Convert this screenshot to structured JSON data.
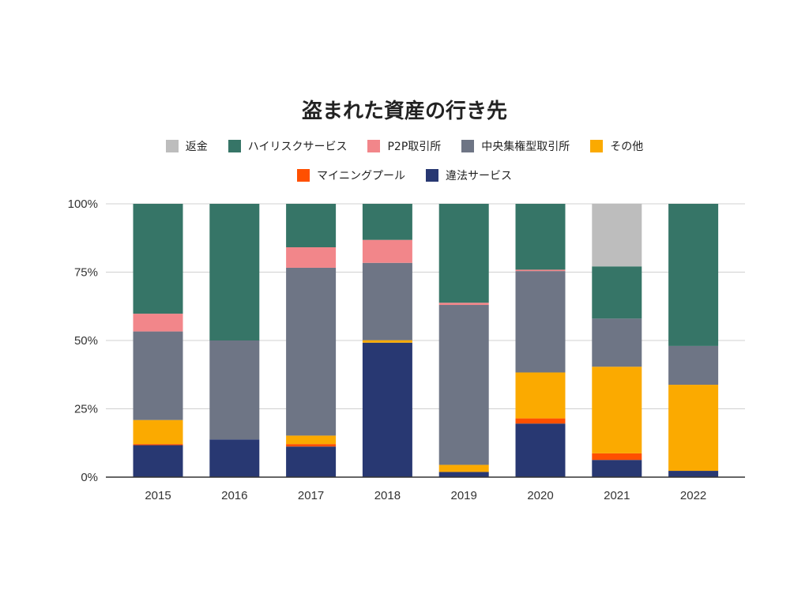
{
  "chart_data": {
    "type": "bar",
    "stacked": "percent",
    "title": "盗まれた資産の行き先",
    "xlabel": "",
    "ylabel": "",
    "ylim": [
      0,
      100
    ],
    "yticks": [
      "0%",
      "25%",
      "50%",
      "75%",
      "100%"
    ],
    "grid": true,
    "legend_position": "top",
    "categories": [
      "2015",
      "2016",
      "2017",
      "2018",
      "2019",
      "2020",
      "2021",
      "2022"
    ],
    "series": [
      {
        "name": "違法サービス",
        "color": "#283872",
        "values": [
          11.7,
          13.8,
          11.2,
          49.2,
          1.9,
          19.6,
          6.3,
          2.3
        ]
      },
      {
        "name": "マイニングプール",
        "color": "#ff5000",
        "values": [
          0.4,
          0,
          0.9,
          0,
          0,
          1.9,
          2.4,
          0
        ]
      },
      {
        "name": "その他",
        "color": "#fbaa00",
        "values": [
          8.8,
          0,
          3.1,
          0.9,
          2.6,
          16.8,
          31.7,
          31.5
        ]
      },
      {
        "name": "中央集権型取引所",
        "color": "#6e7585",
        "values": [
          32.4,
          36.2,
          61.4,
          28.3,
          58.5,
          37.1,
          17.6,
          14.2
        ]
      },
      {
        "name": "P2P取引所",
        "color": "#f2868a",
        "values": [
          6.5,
          0,
          7.5,
          8.4,
          0.8,
          0.5,
          0,
          0
        ]
      },
      {
        "name": "ハイリスクサービス",
        "color": "#367567",
        "values": [
          40.2,
          50.0,
          15.9,
          13.2,
          36.2,
          24.1,
          19.1,
          52.0
        ]
      },
      {
        "name": "返金",
        "color": "#bdbdbd",
        "values": [
          0,
          0,
          0,
          0,
          0,
          0,
          22.9,
          0
        ]
      }
    ],
    "legend_order": [
      "返金",
      "ハイリスクサービス",
      "P2P取引所",
      "中央集権型取引所",
      "その他",
      "マイニングプール",
      "違法サービス"
    ]
  }
}
